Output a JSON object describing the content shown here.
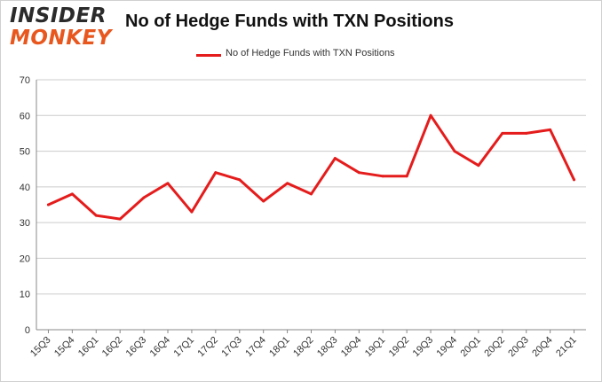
{
  "logo": {
    "line1": "INSIDER",
    "line2": "MONKEY"
  },
  "colors": {
    "series": "#e51c1c",
    "grid": "#cccccc",
    "logo_accent": "#e8571e"
  },
  "chart_data": {
    "type": "line",
    "title": "No of Hedge Funds with TXN Positions",
    "legend_position": "top-center",
    "grid": true,
    "ylim": [
      0,
      70
    ],
    "yticks": [
      0,
      10,
      20,
      30,
      40,
      50,
      60,
      70
    ],
    "categories": [
      "15Q3",
      "15Q4",
      "16Q1",
      "16Q2",
      "16Q3",
      "16Q4",
      "17Q1",
      "17Q2",
      "17Q3",
      "17Q4",
      "18Q1",
      "18Q2",
      "18Q3",
      "18Q4",
      "19Q1",
      "19Q2",
      "19Q3",
      "19Q4",
      "20Q1",
      "20Q2",
      "20Q3",
      "20Q4",
      "21Q1"
    ],
    "series": [
      {
        "name": "No of Hedge Funds with TXN Positions",
        "values": [
          35,
          38,
          32,
          31,
          37,
          41,
          33,
          44,
          42,
          36,
          41,
          38,
          48,
          44,
          43,
          43,
          60,
          50,
          46,
          55,
          55,
          56,
          42
        ]
      }
    ]
  }
}
